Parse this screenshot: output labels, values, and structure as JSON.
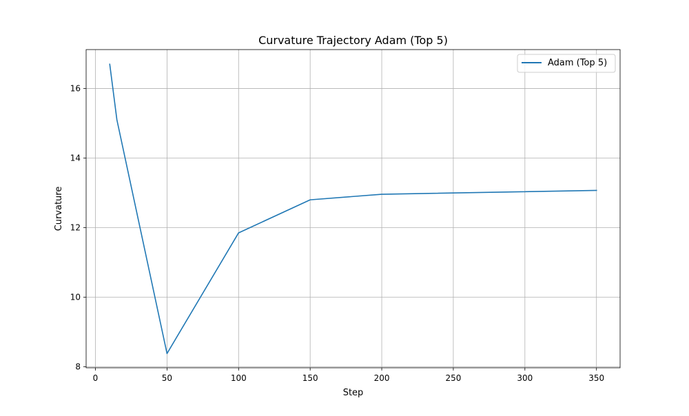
{
  "chart_data": {
    "type": "line",
    "title": "Curvature Trajectory Adam (Top 5)",
    "xlabel": "Step",
    "ylabel": "Curvature",
    "xlim": [
      -6.5,
      366.5
    ],
    "ylim": [
      7.97,
      17.12
    ],
    "xticks": [
      0,
      50,
      100,
      150,
      200,
      250,
      300,
      350
    ],
    "yticks": [
      8,
      10,
      12,
      14,
      16
    ],
    "grid": true,
    "legend_position": "top-right",
    "series": [
      {
        "name": "Adam (Top 5)",
        "color": "#1f77b4",
        "x": [
          10,
          15,
          50,
          100,
          150,
          200,
          350
        ],
        "y": [
          16.7,
          15.1,
          8.38,
          11.85,
          12.8,
          12.96,
          13.07
        ]
      }
    ]
  }
}
